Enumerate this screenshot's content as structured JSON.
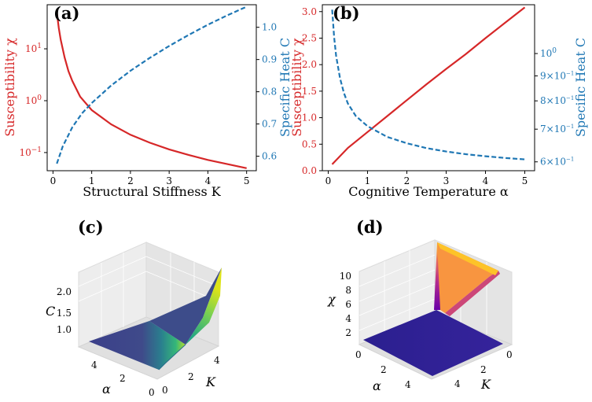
{
  "colors": {
    "red": "#d62728",
    "blue": "#1f77b4",
    "axis": "#000000",
    "pane": "#eaeaea",
    "grid": "#cfcfcf"
  },
  "chart_data": [
    {
      "panel": "(a)",
      "type": "line",
      "xlabel": "Structural Stiffness K",
      "xlim": [
        -0.15,
        5.25
      ],
      "xticks": [
        "0",
        "1",
        "2",
        "3",
        "4",
        "5"
      ],
      "left_axis": {
        "label": "Susceptibility χ",
        "scale": "log",
        "ylim_log10": [
          -1.35,
          1.85
        ],
        "ticks": [
          {
            "base": "10",
            "exp": "1",
            "value": 1
          },
          {
            "base": "10",
            "exp": "0",
            "value": 0
          },
          {
            "base": "10",
            "exp": "−1",
            "value": -1
          }
        ]
      },
      "right_axis": {
        "label": "Specific Heat C",
        "scale": "linear",
        "ylim": [
          0.555,
          1.07
        ],
        "ticks": [
          "0.6",
          "0.7",
          "0.8",
          "0.9",
          "1.0"
        ]
      },
      "series": [
        {
          "name": "Susceptibility χ",
          "axis": "left",
          "style": "solid",
          "color": "red",
          "x": [
            0.1,
            0.15,
            0.2,
            0.3,
            0.4,
            0.5,
            0.7,
            1.0,
            1.5,
            2.0,
            2.5,
            3.0,
            3.5,
            4.0,
            4.5,
            5.0
          ],
          "y": [
            50,
            25,
            15,
            6.8,
            3.7,
            2.4,
            1.2,
            0.66,
            0.35,
            0.22,
            0.155,
            0.115,
            0.09,
            0.072,
            0.06,
            0.05
          ]
        },
        {
          "name": "Specific Heat C",
          "axis": "right",
          "style": "dashed",
          "color": "blue",
          "x": [
            0.1,
            0.25,
            0.5,
            0.75,
            1.0,
            1.5,
            2.0,
            2.5,
            3.0,
            3.5,
            4.0,
            4.5,
            5.0
          ],
          "y": [
            0.577,
            0.63,
            0.69,
            0.733,
            0.765,
            0.819,
            0.865,
            0.905,
            0.942,
            0.976,
            1.008,
            1.037,
            1.064
          ]
        }
      ]
    },
    {
      "panel": "(b)",
      "type": "line",
      "xlabel": "Cognitive Temperature α",
      "xlim": [
        -0.15,
        5.25
      ],
      "xticks": [
        "0",
        "1",
        "2",
        "3",
        "4",
        "5"
      ],
      "left_axis": {
        "label": "Susceptibility χ",
        "scale": "linear",
        "ylim": [
          0,
          3.13
        ],
        "ticks": [
          "0.0",
          "0.5",
          "1.0",
          "1.5",
          "2.0",
          "2.5",
          "3.0"
        ]
      },
      "right_axis": {
        "label": "Specific Heat C",
        "scale": "log",
        "ylim_log10": [
          -0.24,
          0.1
        ],
        "ticks": [
          {
            "base": "6×10",
            "exp": "−1",
            "value": 0.6
          },
          {
            "base": "7×10",
            "exp": "−1",
            "value": 0.7
          },
          {
            "base": "8×10",
            "exp": "−1",
            "value": 0.8
          },
          {
            "base": "9×10",
            "exp": "−1",
            "value": 0.9
          },
          {
            "base": "10",
            "exp": "0",
            "value": 1.0
          }
        ]
      },
      "series": [
        {
          "name": "Susceptibility χ",
          "axis": "left",
          "style": "solid",
          "color": "red",
          "x": [
            0.1,
            0.5,
            1.0,
            1.5,
            2.0,
            2.5,
            3.0,
            3.5,
            4.0,
            4.5,
            5.0
          ],
          "y": [
            0.12,
            0.43,
            0.73,
            1.03,
            1.33,
            1.63,
            1.92,
            2.2,
            2.5,
            2.79,
            3.08
          ]
        },
        {
          "name": "Specific Heat C",
          "axis": "right",
          "style": "dashed",
          "color": "blue",
          "x": [
            0.1,
            0.15,
            0.2,
            0.3,
            0.4,
            0.5,
            0.7,
            1.0,
            1.5,
            2.0,
            2.5,
            3.0,
            3.5,
            4.0,
            4.5,
            5.0
          ],
          "y": [
            1.23,
            1.08,
            0.99,
            0.89,
            0.83,
            0.79,
            0.745,
            0.71,
            0.675,
            0.655,
            0.64,
            0.63,
            0.622,
            0.616,
            0.611,
            0.607
          ]
        }
      ]
    },
    {
      "panel": "(c)",
      "type": "surface",
      "zlabel": "C",
      "xlabel": "K",
      "ylabel": "α",
      "x_ticks": [
        "0",
        "2",
        "4"
      ],
      "y_ticks": [
        "4",
        "2",
        "0"
      ],
      "z_ticks": [
        "1.0",
        "1.5",
        "2.0"
      ],
      "zlim": [
        0.6,
        2.35
      ],
      "colormap": "viridis"
    },
    {
      "panel": "(d)",
      "type": "surface",
      "zlabel": "χ",
      "xlabel": "K",
      "ylabel": "α",
      "x_ticks": [
        "4",
        "2",
        "0"
      ],
      "y_ticks": [
        "0",
        "2",
        "4"
      ],
      "z_ticks": [
        "2",
        "4",
        "6",
        "8",
        "10"
      ],
      "zlim": [
        0,
        11
      ],
      "colormap": "plasma"
    }
  ]
}
